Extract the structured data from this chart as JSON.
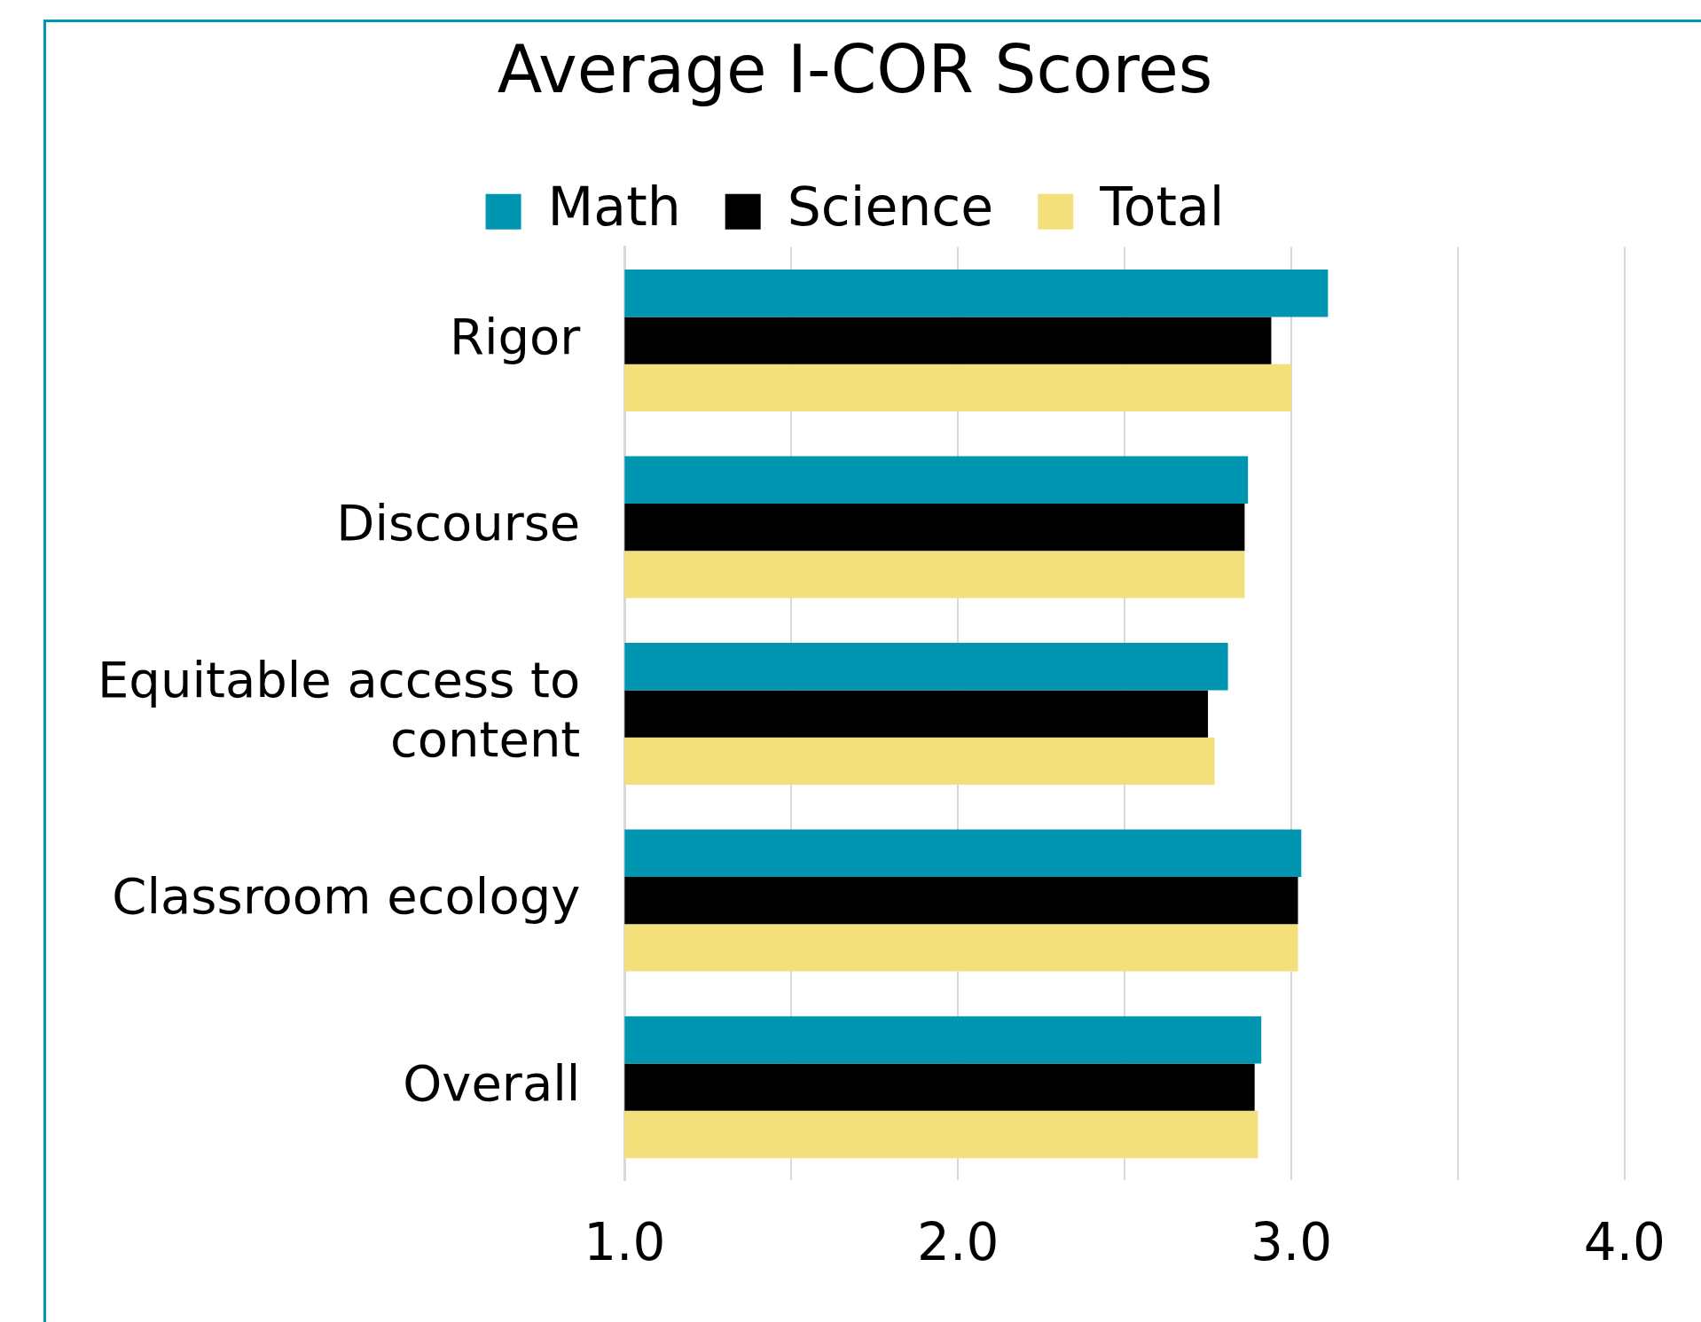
{
  "chart_data": {
    "type": "bar",
    "orientation": "horizontal",
    "title": "Average I-COR Scores",
    "categories": [
      "Rigor",
      "Discourse",
      "Equitable access to content",
      "Classroom ecology",
      "Overall"
    ],
    "series": [
      {
        "name": "Math",
        "color": "#0096b2",
        "values": [
          3.11,
          2.87,
          2.81,
          3.03,
          2.91
        ]
      },
      {
        "name": "Science",
        "color": "#000000",
        "values": [
          2.94,
          2.86,
          2.75,
          3.02,
          2.89
        ]
      },
      {
        "name": "Total",
        "color": "#f4e07a",
        "values": [
          3.0,
          2.86,
          2.77,
          3.02,
          2.9
        ]
      }
    ],
    "xlim": [
      1,
      4
    ],
    "xticks": [
      {
        "value": 1,
        "label": "1.0"
      },
      {
        "value": 1.5,
        "label": null
      },
      {
        "value": 2,
        "label": "2.0"
      },
      {
        "value": 2.5,
        "label": null
      },
      {
        "value": 3,
        "label": "3.0"
      },
      {
        "value": 3.5,
        "label": null
      },
      {
        "value": 4,
        "label": "4.0"
      }
    ],
    "grid": "x",
    "legend": "top"
  }
}
